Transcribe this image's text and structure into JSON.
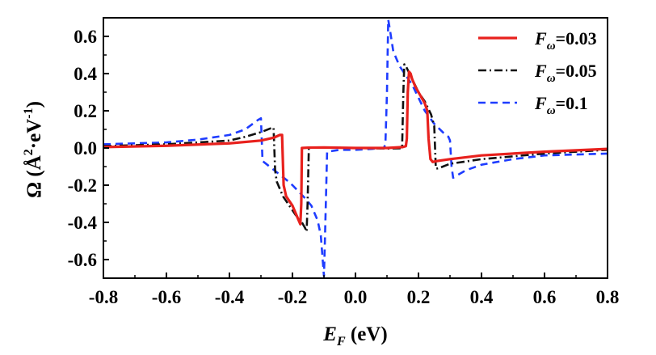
{
  "chart_data": {
    "type": "line",
    "xlabel": {
      "main": "E",
      "sub": "F",
      "unit": " (eV)"
    },
    "ylabel": {
      "main": "Ω (Å",
      "sup1": "2",
      "mid": "·eV",
      "sup2": "-1",
      "end": ")"
    },
    "xlim": [
      -0.8,
      0.8
    ],
    "ylim": [
      -0.7,
      0.7
    ],
    "xticks": [
      -0.8,
      -0.6,
      -0.4,
      -0.2,
      0.0,
      0.2,
      0.4,
      0.6,
      0.8
    ],
    "xtick_labels": [
      "-0.8",
      "-0.6",
      "-0.4",
      "-0.2",
      "0.0",
      "0.2",
      "0.4",
      "0.6",
      "0.8"
    ],
    "yticks": [
      -0.6,
      -0.4,
      -0.2,
      0.0,
      0.2,
      0.4,
      0.6
    ],
    "ytick_labels": [
      "-0.6",
      "-0.4",
      "-0.2",
      "0.0",
      "0.2",
      "0.4",
      "0.6"
    ],
    "legend_position": "top-right",
    "series": [
      {
        "name": "F_ω=0.03",
        "label_main": "F",
        "label_sub": "ω",
        "label_value": "=0.03",
        "color": "#e8211d",
        "style": "solid",
        "x": [
          -0.8,
          -0.6,
          -0.4,
          -0.3,
          -0.26,
          -0.24,
          -0.233,
          -0.228,
          -0.22,
          -0.2,
          -0.19,
          -0.18,
          -0.175,
          -0.172,
          -0.17,
          -0.15,
          -0.1,
          0.0,
          0.1,
          0.15,
          0.16,
          0.163,
          0.166,
          0.17,
          0.175,
          0.18,
          0.19,
          0.2,
          0.21,
          0.22,
          0.228,
          0.232,
          0.238,
          0.245,
          0.26,
          0.3,
          0.4,
          0.6,
          0.8
        ],
        "y": [
          0.005,
          0.012,
          0.025,
          0.04,
          0.055,
          0.07,
          0.07,
          -0.2,
          -0.26,
          -0.31,
          -0.35,
          -0.39,
          -0.41,
          -0.3,
          0.0,
          0.002,
          0.003,
          0.0,
          0.0,
          0.005,
          0.01,
          0.05,
          0.3,
          0.41,
          0.4,
          0.37,
          0.33,
          0.3,
          0.27,
          0.24,
          0.2,
          0.05,
          -0.06,
          -0.075,
          -0.07,
          -0.06,
          -0.04,
          -0.02,
          -0.005
        ]
      },
      {
        "name": "F_ω=0.05",
        "label_main": "F",
        "label_sub": "ω",
        "label_value": "=0.05",
        "color": "#111111",
        "style": "dashdot",
        "x": [
          -0.8,
          -0.6,
          -0.4,
          -0.35,
          -0.3,
          -0.27,
          -0.26,
          -0.255,
          -0.25,
          -0.23,
          -0.21,
          -0.19,
          -0.17,
          -0.16,
          -0.155,
          -0.152,
          -0.148,
          -0.14,
          -0.1,
          0.0,
          0.1,
          0.14,
          0.148,
          0.152,
          0.155,
          0.16,
          0.18,
          0.2,
          0.22,
          0.24,
          0.25,
          0.255,
          0.26,
          0.27,
          0.3,
          0.4,
          0.6,
          0.8
        ],
        "y": [
          0.01,
          0.02,
          0.04,
          0.06,
          0.085,
          0.105,
          0.11,
          -0.12,
          -0.18,
          -0.26,
          -0.31,
          -0.36,
          -0.4,
          -0.43,
          -0.45,
          -0.3,
          0.0,
          0.002,
          0.003,
          0.0,
          -0.003,
          -0.002,
          0.0,
          0.3,
          0.45,
          0.44,
          0.37,
          0.3,
          0.25,
          0.18,
          0.12,
          -0.11,
          -0.11,
          -0.105,
          -0.085,
          -0.06,
          -0.03,
          -0.01
        ]
      },
      {
        "name": "F_ω=0.1",
        "label_main": "F",
        "label_sub": "ω",
        "label_value": "=0.1",
        "color": "#1e3cff",
        "style": "dashed",
        "x": [
          -0.8,
          -0.6,
          -0.5,
          -0.4,
          -0.35,
          -0.31,
          -0.3,
          -0.295,
          -0.28,
          -0.25,
          -0.22,
          -0.2,
          -0.16,
          -0.14,
          -0.12,
          -0.11,
          -0.105,
          -0.1,
          -0.097,
          -0.09,
          -0.05,
          0.0,
          0.05,
          0.09,
          0.095,
          0.1,
          0.104,
          0.108,
          0.12,
          0.14,
          0.16,
          0.18,
          0.2,
          0.22,
          0.25,
          0.28,
          0.295,
          0.3,
          0.305,
          0.31,
          0.35,
          0.4,
          0.5,
          0.6,
          0.8
        ],
        "y": [
          0.02,
          0.03,
          0.045,
          0.07,
          0.1,
          0.15,
          0.16,
          -0.07,
          -0.09,
          -0.13,
          -0.17,
          -0.2,
          -0.27,
          -0.31,
          -0.39,
          -0.47,
          -0.58,
          -0.69,
          -0.5,
          -0.02,
          -0.01,
          -0.01,
          -0.005,
          0.0,
          0.02,
          0.3,
          0.69,
          0.65,
          0.52,
          0.44,
          0.39,
          0.34,
          0.27,
          0.2,
          0.13,
          0.08,
          0.06,
          0.04,
          -0.1,
          -0.16,
          -0.12,
          -0.09,
          -0.06,
          -0.04,
          -0.03
        ]
      }
    ]
  }
}
